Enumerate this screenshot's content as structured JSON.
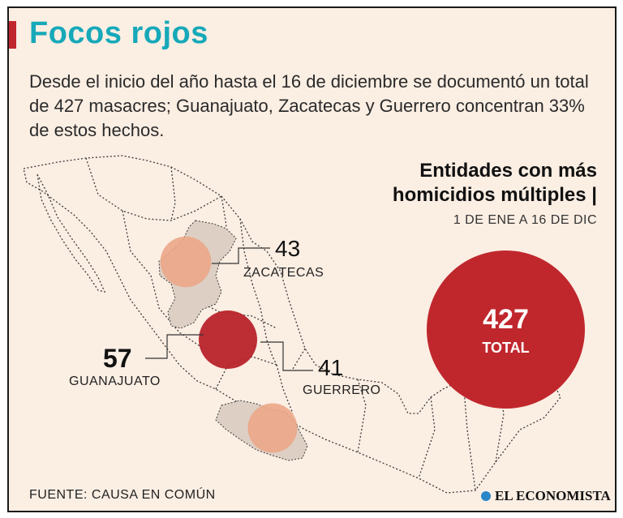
{
  "header": {
    "title": "Focos rojos",
    "subtitle": "Desde el inicio del año hasta el 16 de diciembre se documentó un total de 427 masacres; Guanajuato, Zacatecas y Guerrero concentran 33% de estos hechos."
  },
  "panel": {
    "title_line1": "Entidades con más",
    "title_line2": "homicidios múltiples |",
    "period": "1 DE ENE A 16 DE DIC"
  },
  "total": {
    "value": "427",
    "label": "TOTAL"
  },
  "states": [
    {
      "name": "ZACATECAS",
      "value": "43"
    },
    {
      "name": "GUANAJUATO",
      "value": "57"
    },
    {
      "name": "GUERRERO",
      "value": "41"
    }
  ],
  "footer": {
    "source": "FUENTE: CAUSA EN COMÚN",
    "logo": "EL ECONOMISTA"
  },
  "colors": {
    "title": "#16a9b9",
    "accent": "#c0272d",
    "guanajuato": "#b8222a",
    "zacatecas_guerrero_bubble": "#eba688",
    "highlight_state": "#ddcfc4",
    "background": "#fbeee3"
  }
}
